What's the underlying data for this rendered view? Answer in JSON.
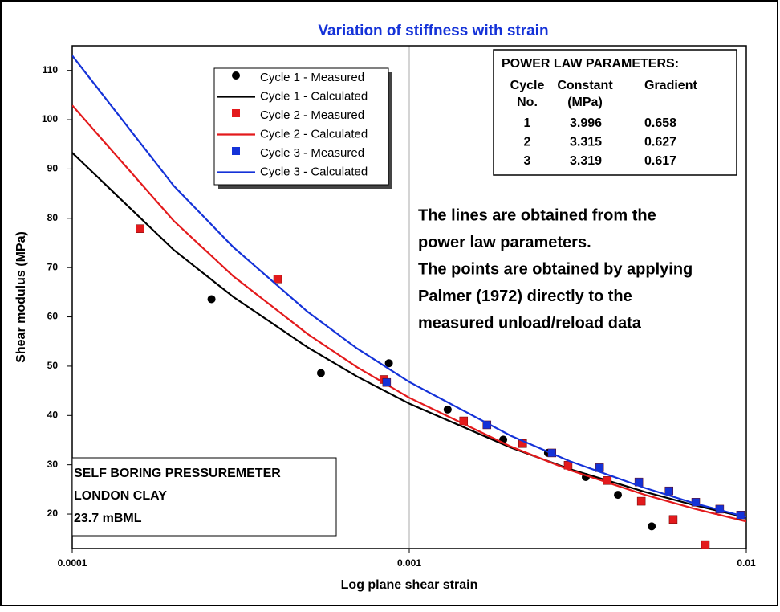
{
  "chart_data": {
    "type": "line",
    "title": "Variation of stiffness with strain",
    "xlabel": "Log plane shear strain",
    "ylabel": "Shear modulus (MPa)",
    "xscale": "log",
    "grid": "x",
    "xlim": [
      0.0001,
      0.01
    ],
    "xticks": [
      0.0001,
      0.001,
      0.01
    ],
    "ylim": [
      13,
      115
    ],
    "yticks": [
      20,
      30,
      40,
      50,
      60,
      70,
      80,
      90,
      100,
      110
    ],
    "series": [
      {
        "name": "Cycle 1 - Measured",
        "color": "#000000",
        "marker": "circle",
        "x": [
          0.000259,
          0.000547,
          0.00087,
          0.0013,
          0.0019,
          0.00258,
          0.00334,
          0.00416,
          0.00524
        ],
        "values": [
          63.6,
          48.6,
          50.6,
          41.2,
          35.1,
          32.4,
          27.5,
          23.9,
          17.5
        ]
      },
      {
        "name": "Cycle 1 - Calculated",
        "color": "#000000",
        "x": [
          0.0001,
          0.0002,
          0.0003,
          0.0005,
          0.0007,
          0.001,
          0.002,
          0.003,
          0.005,
          0.007,
          0.01
        ],
        "values": [
          93.3,
          73.6,
          64.1,
          53.8,
          47.9,
          42.4,
          33.5,
          29.1,
          24.5,
          21.8,
          19.3
        ]
      },
      {
        "name": "Cycle 2 - Measured",
        "color": "#e31a1c",
        "marker": "square",
        "x": [
          0.000159,
          0.000407,
          0.00084,
          0.00145,
          0.00217,
          0.00296,
          0.00387,
          0.00488,
          0.00607,
          0.00756
        ],
        "values": [
          77.9,
          67.7,
          47.3,
          38.9,
          34.3,
          29.9,
          26.8,
          22.6,
          18.9,
          13.8
        ]
      },
      {
        "name": "Cycle 2 - Calculated",
        "color": "#e31a1c",
        "x": [
          0.0001,
          0.0002,
          0.0003,
          0.0005,
          0.0007,
          0.001,
          0.002,
          0.003,
          0.005,
          0.007,
          0.01
        ],
        "values": [
          102.9,
          79.5,
          68.3,
          56.5,
          49.8,
          43.6,
          33.7,
          28.9,
          23.9,
          21.1,
          18.5
        ]
      },
      {
        "name": "Cycle 3 - Measured",
        "color": "#1432d8",
        "marker": "square",
        "x": [
          0.000857,
          0.0017,
          0.00265,
          0.00367,
          0.0048,
          0.0059,
          0.00708,
          0.00834,
          0.00962
        ],
        "values": [
          46.7,
          38.1,
          32.4,
          29.4,
          26.5,
          24.7,
          22.4,
          21.0,
          19.8
        ]
      },
      {
        "name": "Cycle 3 - Calculated",
        "color": "#1432d8",
        "x": [
          0.0001,
          0.0002,
          0.0003,
          0.0005,
          0.0007,
          0.001,
          0.002,
          0.003,
          0.005,
          0.007,
          0.01
        ],
        "values": [
          113.0,
          86.6,
          74.2,
          61.0,
          53.6,
          46.8,
          35.9,
          30.7,
          25.3,
          22.2,
          19.4
        ]
      }
    ],
    "parameters_box": {
      "title": "POWER LAW PARAMETERS:",
      "headers": [
        [
          "Cycle",
          "No."
        ],
        [
          "Constant",
          "(MPa)"
        ],
        [
          "Gradient"
        ]
      ],
      "rows": [
        [
          1,
          3.996,
          0.658
        ],
        [
          2,
          3.315,
          0.627
        ],
        [
          3,
          3.319,
          0.617
        ]
      ]
    },
    "note": [
      "The lines are obtained from the",
      "power law parameters.",
      "The points are obtained by applying",
      "Palmer (1972) directly to the",
      "measured unload/reload data"
    ],
    "info_box": [
      "SELF BORING PRESSUREMETER",
      "LONDON CLAY",
      "23.7 mBML"
    ]
  }
}
